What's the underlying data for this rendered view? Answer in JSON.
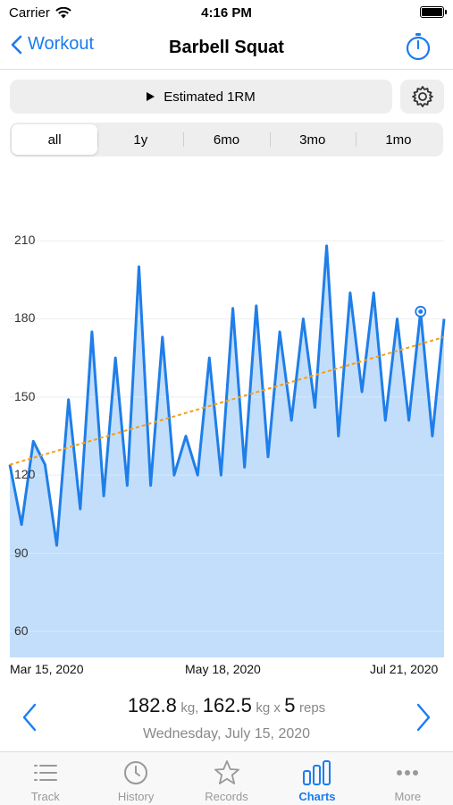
{
  "status_bar": {
    "carrier": "Carrier",
    "time": "4:16 PM"
  },
  "nav": {
    "back_label": "Workout",
    "title": "Barbell Squat"
  },
  "metric_button": {
    "label": "Estimated 1RM"
  },
  "ranges": [
    {
      "label": "all",
      "active": true
    },
    {
      "label": "1y",
      "active": false
    },
    {
      "label": "6mo",
      "active": false
    },
    {
      "label": "3mo",
      "active": false
    },
    {
      "label": "1mo",
      "active": false
    }
  ],
  "chart_data": {
    "type": "area",
    "y_ticks": [
      "210",
      "180",
      "150",
      "120",
      "90",
      "60"
    ],
    "x_ticks": [
      "Mar 15, 2020",
      "May 18, 2020",
      "Jul 21, 2020"
    ],
    "ylim": [
      50,
      220
    ],
    "grid": true,
    "values": [
      124,
      101,
      133,
      124,
      93,
      149,
      107,
      175,
      112,
      165,
      116,
      200,
      116,
      173,
      120,
      135,
      120,
      165,
      120,
      184,
      123,
      185,
      127,
      175,
      141,
      180,
      146,
      208,
      135,
      190,
      152,
      190,
      141,
      180,
      141,
      182.8,
      135,
      180
    ],
    "selected_index": 35,
    "trend": [
      124,
      173
    ],
    "colors": {
      "line": "#1f7ee8",
      "fill": "#bfdcfb",
      "trend": "#f0a020",
      "grid": "#e6e6e6"
    }
  },
  "readout": {
    "value1": "182.8",
    "unit1": "kg,",
    "value2": "162.5",
    "unit2": "kg x",
    "reps": "5",
    "reps_label": "reps",
    "date": "Wednesday, July 15, 2020"
  },
  "tabs": [
    {
      "label": "Track",
      "icon": "list-icon",
      "active": false
    },
    {
      "label": "History",
      "icon": "clock-icon",
      "active": false
    },
    {
      "label": "Records",
      "icon": "star-icon",
      "active": false
    },
    {
      "label": "Charts",
      "icon": "bar-chart-icon",
      "active": true
    },
    {
      "label": "More",
      "icon": "more-icon",
      "active": false
    }
  ]
}
